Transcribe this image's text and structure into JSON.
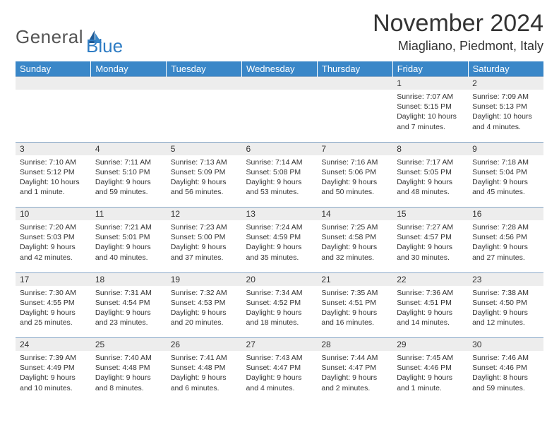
{
  "logo": {
    "text1": "General",
    "text2": "Blue"
  },
  "title": "November 2024",
  "location": "Miagliano, Piedmont, Italy",
  "colors": {
    "header_bg": "#3a87c8",
    "header_fg": "#ffffff",
    "daynum_bg": "#ededed",
    "border": "#88a8c7",
    "text": "#333333",
    "logo_gray": "#555555",
    "logo_blue": "#2f7dc4"
  },
  "weekdays": [
    "Sunday",
    "Monday",
    "Tuesday",
    "Wednesday",
    "Thursday",
    "Friday",
    "Saturday"
  ],
  "weeks": [
    [
      null,
      null,
      null,
      null,
      null,
      {
        "n": "1",
        "sr": "Sunrise: 7:07 AM",
        "ss": "Sunset: 5:15 PM",
        "dl": "Daylight: 10 hours and 7 minutes."
      },
      {
        "n": "2",
        "sr": "Sunrise: 7:09 AM",
        "ss": "Sunset: 5:13 PM",
        "dl": "Daylight: 10 hours and 4 minutes."
      }
    ],
    [
      {
        "n": "3",
        "sr": "Sunrise: 7:10 AM",
        "ss": "Sunset: 5:12 PM",
        "dl": "Daylight: 10 hours and 1 minute."
      },
      {
        "n": "4",
        "sr": "Sunrise: 7:11 AM",
        "ss": "Sunset: 5:10 PM",
        "dl": "Daylight: 9 hours and 59 minutes."
      },
      {
        "n": "5",
        "sr": "Sunrise: 7:13 AM",
        "ss": "Sunset: 5:09 PM",
        "dl": "Daylight: 9 hours and 56 minutes."
      },
      {
        "n": "6",
        "sr": "Sunrise: 7:14 AM",
        "ss": "Sunset: 5:08 PM",
        "dl": "Daylight: 9 hours and 53 minutes."
      },
      {
        "n": "7",
        "sr": "Sunrise: 7:16 AM",
        "ss": "Sunset: 5:06 PM",
        "dl": "Daylight: 9 hours and 50 minutes."
      },
      {
        "n": "8",
        "sr": "Sunrise: 7:17 AM",
        "ss": "Sunset: 5:05 PM",
        "dl": "Daylight: 9 hours and 48 minutes."
      },
      {
        "n": "9",
        "sr": "Sunrise: 7:18 AM",
        "ss": "Sunset: 5:04 PM",
        "dl": "Daylight: 9 hours and 45 minutes."
      }
    ],
    [
      {
        "n": "10",
        "sr": "Sunrise: 7:20 AM",
        "ss": "Sunset: 5:03 PM",
        "dl": "Daylight: 9 hours and 42 minutes."
      },
      {
        "n": "11",
        "sr": "Sunrise: 7:21 AM",
        "ss": "Sunset: 5:01 PM",
        "dl": "Daylight: 9 hours and 40 minutes."
      },
      {
        "n": "12",
        "sr": "Sunrise: 7:23 AM",
        "ss": "Sunset: 5:00 PM",
        "dl": "Daylight: 9 hours and 37 minutes."
      },
      {
        "n": "13",
        "sr": "Sunrise: 7:24 AM",
        "ss": "Sunset: 4:59 PM",
        "dl": "Daylight: 9 hours and 35 minutes."
      },
      {
        "n": "14",
        "sr": "Sunrise: 7:25 AM",
        "ss": "Sunset: 4:58 PM",
        "dl": "Daylight: 9 hours and 32 minutes."
      },
      {
        "n": "15",
        "sr": "Sunrise: 7:27 AM",
        "ss": "Sunset: 4:57 PM",
        "dl": "Daylight: 9 hours and 30 minutes."
      },
      {
        "n": "16",
        "sr": "Sunrise: 7:28 AM",
        "ss": "Sunset: 4:56 PM",
        "dl": "Daylight: 9 hours and 27 minutes."
      }
    ],
    [
      {
        "n": "17",
        "sr": "Sunrise: 7:30 AM",
        "ss": "Sunset: 4:55 PM",
        "dl": "Daylight: 9 hours and 25 minutes."
      },
      {
        "n": "18",
        "sr": "Sunrise: 7:31 AM",
        "ss": "Sunset: 4:54 PM",
        "dl": "Daylight: 9 hours and 23 minutes."
      },
      {
        "n": "19",
        "sr": "Sunrise: 7:32 AM",
        "ss": "Sunset: 4:53 PM",
        "dl": "Daylight: 9 hours and 20 minutes."
      },
      {
        "n": "20",
        "sr": "Sunrise: 7:34 AM",
        "ss": "Sunset: 4:52 PM",
        "dl": "Daylight: 9 hours and 18 minutes."
      },
      {
        "n": "21",
        "sr": "Sunrise: 7:35 AM",
        "ss": "Sunset: 4:51 PM",
        "dl": "Daylight: 9 hours and 16 minutes."
      },
      {
        "n": "22",
        "sr": "Sunrise: 7:36 AM",
        "ss": "Sunset: 4:51 PM",
        "dl": "Daylight: 9 hours and 14 minutes."
      },
      {
        "n": "23",
        "sr": "Sunrise: 7:38 AM",
        "ss": "Sunset: 4:50 PM",
        "dl": "Daylight: 9 hours and 12 minutes."
      }
    ],
    [
      {
        "n": "24",
        "sr": "Sunrise: 7:39 AM",
        "ss": "Sunset: 4:49 PM",
        "dl": "Daylight: 9 hours and 10 minutes."
      },
      {
        "n": "25",
        "sr": "Sunrise: 7:40 AM",
        "ss": "Sunset: 4:48 PM",
        "dl": "Daylight: 9 hours and 8 minutes."
      },
      {
        "n": "26",
        "sr": "Sunrise: 7:41 AM",
        "ss": "Sunset: 4:48 PM",
        "dl": "Daylight: 9 hours and 6 minutes."
      },
      {
        "n": "27",
        "sr": "Sunrise: 7:43 AM",
        "ss": "Sunset: 4:47 PM",
        "dl": "Daylight: 9 hours and 4 minutes."
      },
      {
        "n": "28",
        "sr": "Sunrise: 7:44 AM",
        "ss": "Sunset: 4:47 PM",
        "dl": "Daylight: 9 hours and 2 minutes."
      },
      {
        "n": "29",
        "sr": "Sunrise: 7:45 AM",
        "ss": "Sunset: 4:46 PM",
        "dl": "Daylight: 9 hours and 1 minute."
      },
      {
        "n": "30",
        "sr": "Sunrise: 7:46 AM",
        "ss": "Sunset: 4:46 PM",
        "dl": "Daylight: 8 hours and 59 minutes."
      }
    ]
  ]
}
